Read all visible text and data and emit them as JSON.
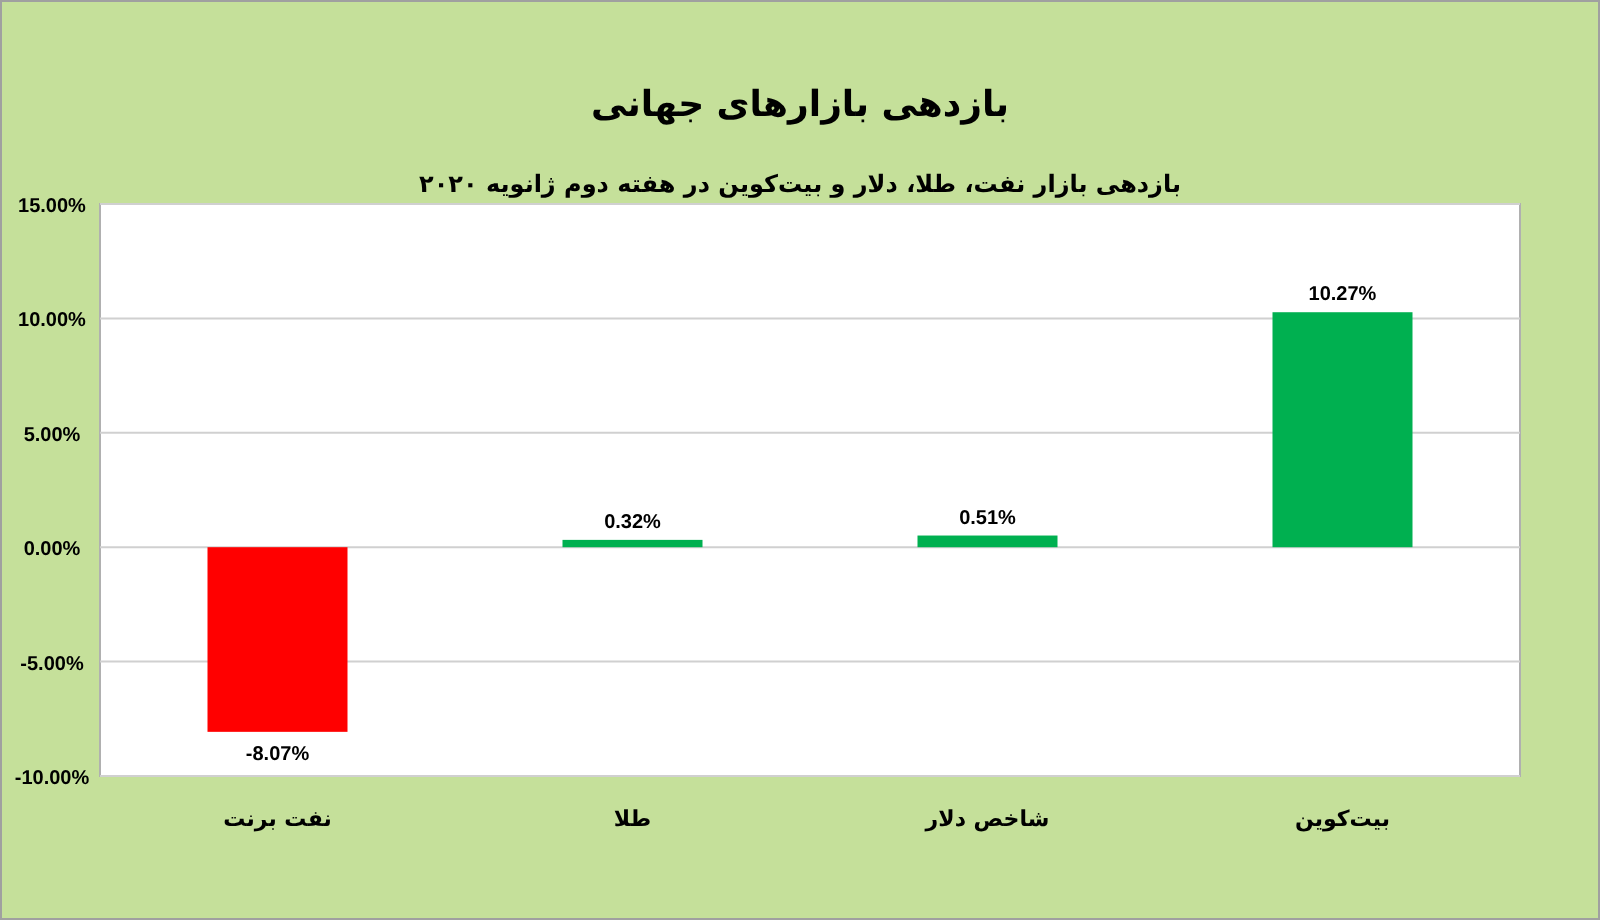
{
  "chart_data": {
    "type": "bar",
    "title": "بازدهی بازارهای جهانی",
    "subtitle": "بازدهی بازار نفت، طلا، دلار و بیت‌کوین در هفته دوم ژانویه ۲۰۲۰",
    "categories": [
      "نفت برنت",
      "طلا",
      "شاخص دلار",
      "بیت‌کوین"
    ],
    "values": [
      -8.07,
      0.32,
      0.51,
      10.27
    ],
    "colors": [
      "#ff0000",
      "#00b050",
      "#00b050",
      "#00b050"
    ],
    "value_labels": [
      "-8.07%",
      "0.32%",
      "0.51%",
      "10.27%"
    ],
    "ylim": [
      -10,
      15
    ],
    "yticks": [
      {
        "value": -10,
        "label": "-10.00%"
      },
      {
        "value": -5,
        "label": "-5.00%"
      },
      {
        "value": 0,
        "label": "0.00%"
      },
      {
        "value": 5,
        "label": "5.00%"
      },
      {
        "value": 10,
        "label": "10.00%"
      },
      {
        "value": 15,
        "label": "15.00%"
      }
    ],
    "grid": "y"
  }
}
